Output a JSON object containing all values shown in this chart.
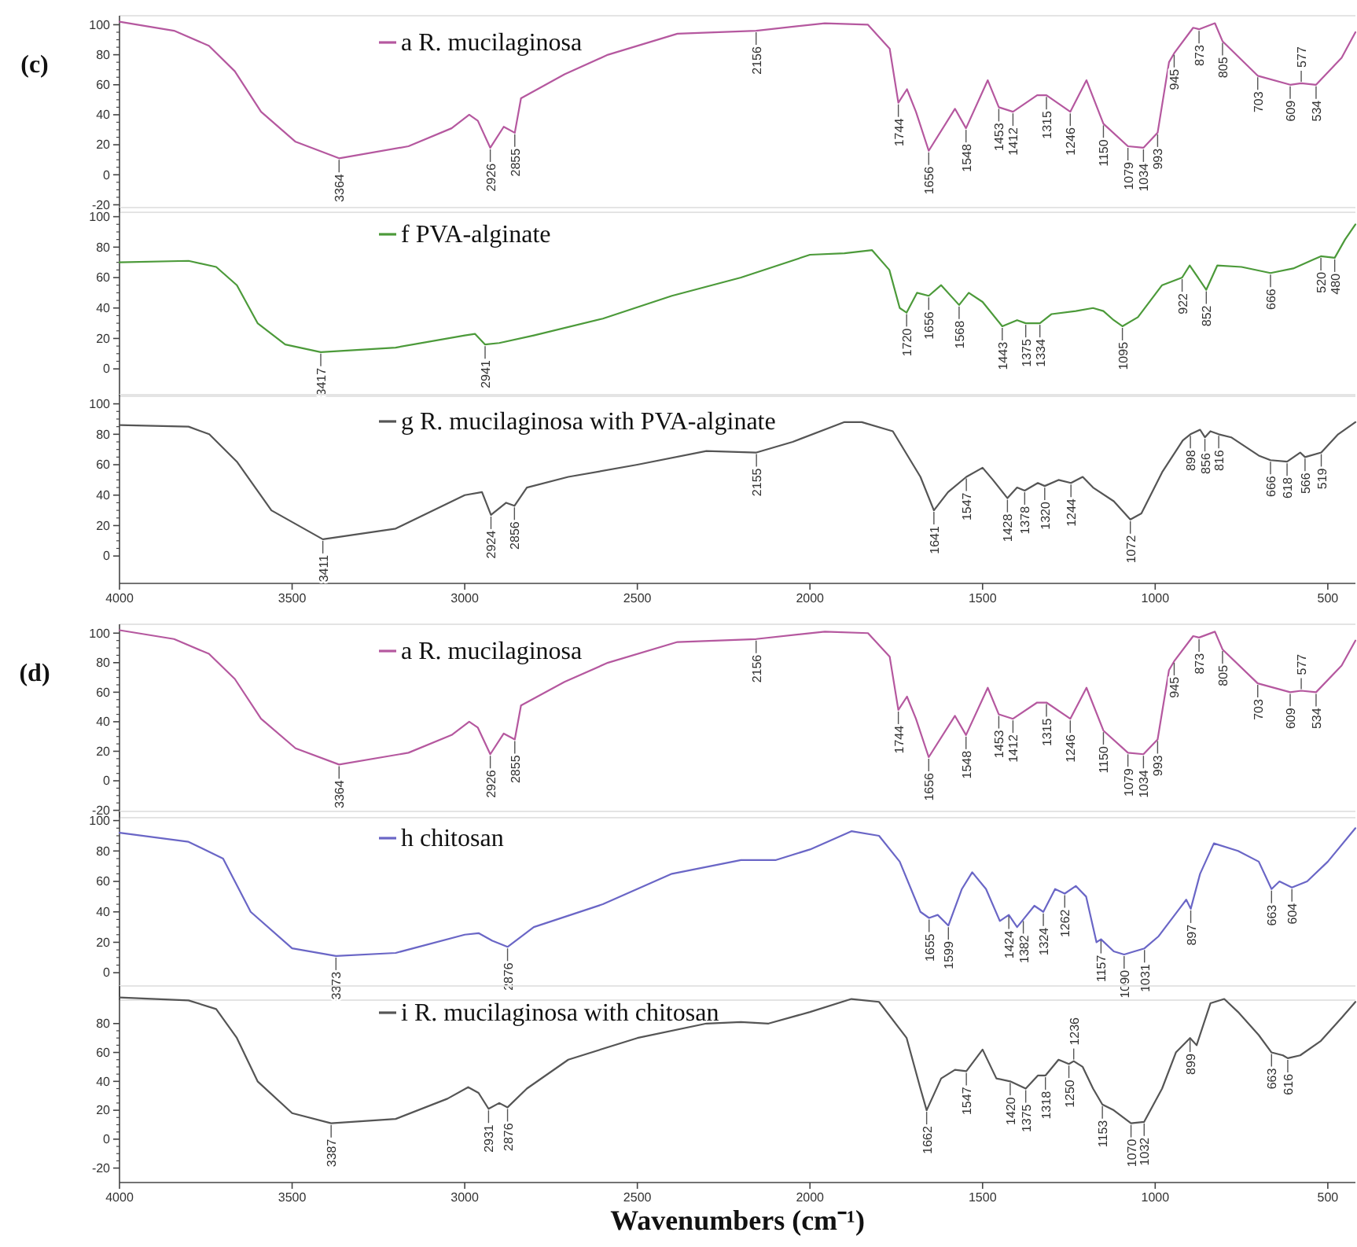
{
  "chart_data": [
    {
      "type": "line",
      "title": "(c)",
      "xlim": [
        4000,
        420
      ],
      "xticks": [
        4000,
        3500,
        3000,
        2500,
        2000,
        1500,
        1000,
        500
      ],
      "ylim": [
        -25,
        106
      ],
      "yticks": [
        -20,
        0,
        20,
        40,
        60,
        80,
        100
      ],
      "tick_labels": "y",
      "legend": "top left",
      "grid": false,
      "x": [
        4000,
        3842,
        3741,
        3666,
        3590,
        3490,
        3364,
        3163,
        3038,
        2987,
        2962,
        2926,
        2887,
        2855,
        2837,
        2711,
        2585,
        2384,
        2156,
        1957,
        1832,
        1769,
        1744,
        1719,
        1693,
        1656,
        1580,
        1548,
        1485,
        1453,
        1412,
        1342,
        1315,
        1246,
        1199,
        1150,
        1079,
        1034,
        993,
        960,
        945,
        890,
        873,
        827,
        805,
        703,
        609,
        577,
        534,
        460,
        420
      ],
      "series": [
        {
          "name": "a  R. mucilaginosa",
          "color": "#b5589f",
          "values": [
            102,
            96,
            86,
            69,
            42,
            22,
            11,
            19,
            31,
            40,
            36,
            18,
            32,
            28,
            51,
            67,
            80,
            94,
            96,
            101,
            100,
            84,
            48,
            57,
            42,
            16,
            44,
            31,
            63,
            45,
            42,
            53,
            53,
            42,
            63,
            34,
            19,
            18,
            28,
            75,
            81,
            98,
            97,
            101,
            89,
            66,
            60,
            61,
            60,
            78,
            95
          ]
        }
      ],
      "annotations": [
        {
          "text": "3364",
          "x": 3364,
          "y": 11
        },
        {
          "text": "2926",
          "x": 2926,
          "y": 18
        },
        {
          "text": "2855",
          "x": 2855,
          "y": 28
        },
        {
          "text": "2156",
          "x": 2156,
          "y": 96
        },
        {
          "text": "1744",
          "x": 1744,
          "y": 48
        },
        {
          "text": "1656",
          "x": 1656,
          "y": 16
        },
        {
          "text": "1548",
          "x": 1548,
          "y": 31
        },
        {
          "text": "1453",
          "x": 1453,
          "y": 45
        },
        {
          "text": "1412",
          "x": 1412,
          "y": 42
        },
        {
          "text": "1315",
          "x": 1315,
          "y": 53
        },
        {
          "text": "1246",
          "x": 1246,
          "y": 42
        },
        {
          "text": "1150",
          "x": 1150,
          "y": 34
        },
        {
          "text": "1079",
          "x": 1079,
          "y": 19
        },
        {
          "text": "1034",
          "x": 1034,
          "y": 18
        },
        {
          "text": "993",
          "x": 993,
          "y": 28
        },
        {
          "text": "945",
          "x": 945,
          "y": 81
        },
        {
          "text": "873",
          "x": 873,
          "y": 97
        },
        {
          "text": "805",
          "x": 805,
          "y": 89
        },
        {
          "text": "703",
          "x": 703,
          "y": 66
        },
        {
          "text": "609",
          "x": 609,
          "y": 60
        },
        {
          "text": "577",
          "x": 577,
          "y": 61
        },
        {
          "text": "534",
          "x": 534,
          "y": 60
        }
      ]
    },
    {
      "type": "line",
      "xlim": [
        4000,
        420
      ],
      "xticks": [
        4000,
        3500,
        3000,
        2500,
        2000,
        1500,
        1000,
        500
      ],
      "ylim": [
        -18,
        106
      ],
      "yticks": [
        0,
        20,
        40,
        60,
        80,
        100
      ],
      "tick_labels": "y",
      "legend": "top left",
      "grid": false,
      "x": [
        4000,
        3800,
        3720,
        3660,
        3600,
        3520,
        3417,
        3200,
        3000,
        2970,
        2941,
        2900,
        2800,
        2600,
        2400,
        2200,
        2000,
        1900,
        1820,
        1770,
        1740,
        1720,
        1690,
        1656,
        1620,
        1568,
        1540,
        1500,
        1443,
        1400,
        1375,
        1334,
        1300,
        1230,
        1180,
        1150,
        1120,
        1095,
        1050,
        980,
        922,
        900,
        852,
        820,
        750,
        666,
        600,
        540,
        520,
        480,
        450,
        420
      ],
      "series": [
        {
          "name": "f  PVA-alginate",
          "color": "#4c9a3a",
          "values": [
            70,
            71,
            67,
            55,
            30,
            16,
            11,
            14,
            22,
            23,
            16,
            17,
            22,
            33,
            48,
            60,
            75,
            76,
            78,
            65,
            40,
            37,
            50,
            48,
            55,
            42,
            50,
            44,
            28,
            32,
            30,
            30,
            36,
            38,
            40,
            38,
            32,
            28,
            34,
            55,
            60,
            68,
            52,
            68,
            67,
            63,
            66,
            72,
            74,
            73,
            85,
            95
          ]
        }
      ],
      "annotations": [
        {
          "text": "3417",
          "x": 3417,
          "y": 11
        },
        {
          "text": "2941",
          "x": 2941,
          "y": 16
        },
        {
          "text": "1720",
          "x": 1720,
          "y": 37
        },
        {
          "text": "1656",
          "x": 1656,
          "y": 48
        },
        {
          "text": "1568",
          "x": 1568,
          "y": 42
        },
        {
          "text": "1443",
          "x": 1443,
          "y": 28
        },
        {
          "text": "1375",
          "x": 1375,
          "y": 30
        },
        {
          "text": "1334",
          "x": 1334,
          "y": 30
        },
        {
          "text": "1095",
          "x": 1095,
          "y": 28
        },
        {
          "text": "922",
          "x": 922,
          "y": 60
        },
        {
          "text": "852",
          "x": 852,
          "y": 52
        },
        {
          "text": "666",
          "x": 666,
          "y": 63
        },
        {
          "text": "520",
          "x": 520,
          "y": 74
        },
        {
          "text": "480",
          "x": 480,
          "y": 73
        }
      ]
    },
    {
      "type": "line",
      "xlim": [
        4000,
        420
      ],
      "xticks": [
        4000,
        3500,
        3000,
        2500,
        2000,
        1500,
        1000,
        500
      ],
      "ylim": [
        -18,
        106
      ],
      "yticks": [
        0,
        20,
        40,
        60,
        80,
        100
      ],
      "legend": "top left",
      "grid": false,
      "x": [
        4000,
        3800,
        3740,
        3660,
        3560,
        3411,
        3200,
        3000,
        2950,
        2924,
        2880,
        2856,
        2820,
        2700,
        2500,
        2300,
        2155,
        2050,
        1900,
        1850,
        1760,
        1720,
        1680,
        1641,
        1600,
        1547,
        1500,
        1470,
        1428,
        1400,
        1378,
        1340,
        1320,
        1280,
        1244,
        1210,
        1180,
        1120,
        1072,
        1040,
        980,
        920,
        898,
        870,
        856,
        840,
        816,
        780,
        700,
        666,
        618,
        580,
        566,
        519,
        470,
        420
      ],
      "series": [
        {
          "name": "g  R. mucilaginosa with PVA-alginate",
          "color": "#555555",
          "values": [
            86,
            85,
            80,
            62,
            30,
            11,
            18,
            40,
            42,
            27,
            35,
            33,
            45,
            52,
            60,
            69,
            68,
            75,
            88,
            88,
            82,
            67,
            52,
            30,
            42,
            52,
            58,
            50,
            38,
            45,
            43,
            48,
            46,
            50,
            48,
            52,
            45,
            36,
            24,
            28,
            55,
            76,
            80,
            83,
            78,
            82,
            80,
            78,
            66,
            63,
            62,
            68,
            65,
            68,
            80,
            88
          ]
        }
      ],
      "annotations": [
        {
          "text": "3411",
          "x": 3411,
          "y": 11
        },
        {
          "text": "2924",
          "x": 2924,
          "y": 27
        },
        {
          "text": "2856",
          "x": 2856,
          "y": 33
        },
        {
          "text": "2155",
          "x": 2155,
          "y": 68
        },
        {
          "text": "1641",
          "x": 1641,
          "y": 30
        },
        {
          "text": "1547",
          "x": 1547,
          "y": 52
        },
        {
          "text": "1428",
          "x": 1428,
          "y": 38
        },
        {
          "text": "1378",
          "x": 1378,
          "y": 43
        },
        {
          "text": "1320",
          "x": 1320,
          "y": 46
        },
        {
          "text": "1244",
          "x": 1244,
          "y": 48
        },
        {
          "text": "1072",
          "x": 1072,
          "y": 24
        },
        {
          "text": "898",
          "x": 898,
          "y": 80
        },
        {
          "text": "856",
          "x": 856,
          "y": 78
        },
        {
          "text": "816",
          "x": 816,
          "y": 80
        },
        {
          "text": "666",
          "x": 666,
          "y": 63
        },
        {
          "text": "618",
          "x": 618,
          "y": 62
        },
        {
          "text": "566",
          "x": 566,
          "y": 65
        },
        {
          "text": "519",
          "x": 519,
          "y": 68
        }
      ]
    },
    {
      "type": "line",
      "title": "(d)",
      "xlim": [
        4000,
        420
      ],
      "xticks": [
        4000,
        3500,
        3000,
        2500,
        2000,
        1500,
        1000,
        500
      ],
      "ylim": [
        -25,
        106
      ],
      "yticks": [
        -20,
        0,
        20,
        40,
        60,
        80,
        100
      ],
      "tick_labels": "y",
      "legend": "top left",
      "grid": false,
      "x": [
        4000,
        3842,
        3741,
        3666,
        3590,
        3490,
        3364,
        3163,
        3038,
        2987,
        2962,
        2926,
        2887,
        2855,
        2837,
        2711,
        2585,
        2384,
        2156,
        1957,
        1832,
        1769,
        1744,
        1719,
        1693,
        1656,
        1580,
        1548,
        1485,
        1453,
        1412,
        1342,
        1315,
        1246,
        1199,
        1150,
        1079,
        1034,
        993,
        960,
        945,
        890,
        873,
        827,
        805,
        703,
        609,
        577,
        534,
        460,
        420
      ],
      "series": [
        {
          "name": "a  R. mucilaginosa",
          "color": "#b5589f",
          "values": [
            102,
            96,
            86,
            69,
            42,
            22,
            11,
            19,
            31,
            40,
            36,
            18,
            32,
            28,
            51,
            67,
            80,
            94,
            96,
            101,
            100,
            84,
            48,
            57,
            42,
            16,
            44,
            31,
            63,
            45,
            42,
            53,
            53,
            42,
            63,
            34,
            19,
            18,
            28,
            75,
            81,
            98,
            97,
            101,
            89,
            66,
            60,
            61,
            60,
            78,
            95
          ]
        }
      ],
      "annotations": [
        {
          "text": "3364",
          "x": 3364,
          "y": 11
        },
        {
          "text": "2926",
          "x": 2926,
          "y": 18
        },
        {
          "text": "2855",
          "x": 2855,
          "y": 28
        },
        {
          "text": "2156",
          "x": 2156,
          "y": 96
        },
        {
          "text": "1744",
          "x": 1744,
          "y": 48
        },
        {
          "text": "1656",
          "x": 1656,
          "y": 16
        },
        {
          "text": "1548",
          "x": 1548,
          "y": 31
        },
        {
          "text": "1453",
          "x": 1453,
          "y": 45
        },
        {
          "text": "1412",
          "x": 1412,
          "y": 42
        },
        {
          "text": "1315",
          "x": 1315,
          "y": 53
        },
        {
          "text": "1246",
          "x": 1246,
          "y": 42
        },
        {
          "text": "1150",
          "x": 1150,
          "y": 34
        },
        {
          "text": "1079",
          "x": 1079,
          "y": 19
        },
        {
          "text": "1034",
          "x": 1034,
          "y": 18
        },
        {
          "text": "993",
          "x": 993,
          "y": 28
        },
        {
          "text": "945",
          "x": 945,
          "y": 81
        },
        {
          "text": "873",
          "x": 873,
          "y": 97
        },
        {
          "text": "805",
          "x": 805,
          "y": 89
        },
        {
          "text": "703",
          "x": 703,
          "y": 66
        },
        {
          "text": "609",
          "x": 609,
          "y": 60
        },
        {
          "text": "577",
          "x": 577,
          "y": 61
        },
        {
          "text": "534",
          "x": 534,
          "y": 60
        }
      ]
    },
    {
      "type": "line",
      "xlim": [
        4000,
        420
      ],
      "xticks": [
        4000,
        3500,
        3000,
        2500,
        2000,
        1500,
        1000,
        500
      ],
      "ylim": [
        -18,
        106
      ],
      "yticks": [
        0,
        20,
        40,
        60,
        80,
        100
      ],
      "tick_labels": "y",
      "legend": "top left",
      "grid": false,
      "x": [
        4000,
        3800,
        3700,
        3620,
        3500,
        3373,
        3200,
        3000,
        2960,
        2920,
        2876,
        2800,
        2600,
        2400,
        2200,
        2100,
        2000,
        1880,
        1800,
        1740,
        1680,
        1655,
        1630,
        1599,
        1560,
        1530,
        1490,
        1450,
        1424,
        1400,
        1382,
        1350,
        1324,
        1290,
        1262,
        1230,
        1200,
        1170,
        1157,
        1120,
        1090,
        1060,
        1031,
        990,
        930,
        910,
        897,
        870,
        830,
        760,
        700,
        663,
        640,
        604,
        560,
        500,
        420
      ],
      "series": [
        {
          "name": "h  chitosan",
          "color": "#6a66c6",
          "values": [
            92,
            86,
            75,
            40,
            16,
            11,
            13,
            25,
            26,
            21,
            17,
            30,
            45,
            65,
            74,
            74,
            81,
            93,
            90,
            73,
            40,
            36,
            38,
            31,
            55,
            66,
            55,
            34,
            38,
            30,
            35,
            44,
            40,
            55,
            52,
            57,
            50,
            20,
            22,
            14,
            12,
            14,
            16,
            24,
            42,
            48,
            42,
            65,
            85,
            80,
            73,
            55,
            60,
            56,
            60,
            73,
            95
          ]
        }
      ],
      "annotations": [
        {
          "text": "3373",
          "x": 3373,
          "y": 11
        },
        {
          "text": "2876",
          "x": 2876,
          "y": 17
        },
        {
          "text": "1655",
          "x": 1655,
          "y": 36
        },
        {
          "text": "1599",
          "x": 1599,
          "y": 31
        },
        {
          "text": "1424",
          "x": 1424,
          "y": 38
        },
        {
          "text": "1382",
          "x": 1382,
          "y": 35
        },
        {
          "text": "1324",
          "x": 1324,
          "y": 40
        },
        {
          "text": "1262",
          "x": 1262,
          "y": 52
        },
        {
          "text": "1157",
          "x": 1157,
          "y": 22
        },
        {
          "text": "1090",
          "x": 1090,
          "y": 12
        },
        {
          "text": "1031",
          "x": 1031,
          "y": 16
        },
        {
          "text": "897",
          "x": 897,
          "y": 42
        },
        {
          "text": "663",
          "x": 663,
          "y": 55
        },
        {
          "text": "604",
          "x": 604,
          "y": 56
        }
      ]
    },
    {
      "type": "line",
      "xlabel": "Wavenumbers (cm⁻¹)",
      "xlim": [
        4000,
        420
      ],
      "xticks": [
        4000,
        3500,
        3000,
        2500,
        2000,
        1500,
        1000,
        500
      ],
      "ylim": [
        -30,
        106
      ],
      "yticks": [
        -20,
        0,
        20,
        40,
        60,
        80
      ],
      "legend": "top left",
      "grid": false,
      "x": [
        4000,
        3800,
        3720,
        3660,
        3600,
        3500,
        3387,
        3200,
        3050,
        2990,
        2960,
        2931,
        2900,
        2876,
        2820,
        2700,
        2500,
        2300,
        2200,
        2120,
        2000,
        1880,
        1800,
        1720,
        1680,
        1662,
        1620,
        1580,
        1547,
        1500,
        1460,
        1420,
        1375,
        1340,
        1318,
        1280,
        1250,
        1236,
        1210,
        1180,
        1153,
        1120,
        1070,
        1032,
        980,
        940,
        899,
        880,
        840,
        800,
        760,
        700,
        663,
        630,
        616,
        580,
        520,
        460,
        420
      ],
      "series": [
        {
          "name": "i  R. mucilaginosa with chitosan",
          "color": "#555555",
          "values": [
            98,
            96,
            90,
            70,
            40,
            18,
            11,
            14,
            28,
            36,
            32,
            21,
            25,
            22,
            35,
            55,
            70,
            80,
            81,
            80,
            88,
            97,
            95,
            70,
            35,
            20,
            42,
            48,
            47,
            62,
            42,
            40,
            35,
            44,
            44,
            55,
            52,
            54,
            50,
            35,
            24,
            20,
            11,
            12,
            35,
            60,
            70,
            65,
            94,
            97,
            88,
            72,
            60,
            58,
            56,
            58,
            68,
            84,
            95
          ]
        }
      ],
      "annotations": [
        {
          "text": "3387",
          "x": 3387,
          "y": 11
        },
        {
          "text": "2931",
          "x": 2931,
          "y": 21
        },
        {
          "text": "2876",
          "x": 2876,
          "y": 22
        },
        {
          "text": "1662",
          "x": 1662,
          "y": 20
        },
        {
          "text": "1547",
          "x": 1547,
          "y": 47
        },
        {
          "text": "1420",
          "x": 1420,
          "y": 40
        },
        {
          "text": "1375",
          "x": 1375,
          "y": 35
        },
        {
          "text": "1318",
          "x": 1318,
          "y": 44
        },
        {
          "text": "1250",
          "x": 1250,
          "y": 52
        },
        {
          "text": "1236",
          "x": 1236,
          "y": 54
        },
        {
          "text": "1153",
          "x": 1153,
          "y": 24
        },
        {
          "text": "1070",
          "x": 1070,
          "y": 11
        },
        {
          "text": "1032",
          "x": 1032,
          "y": 12
        },
        {
          "text": "899",
          "x": 899,
          "y": 70
        },
        {
          "text": "663",
          "x": 663,
          "y": 60
        },
        {
          "text": "616",
          "x": 616,
          "y": 56
        }
      ]
    }
  ]
}
